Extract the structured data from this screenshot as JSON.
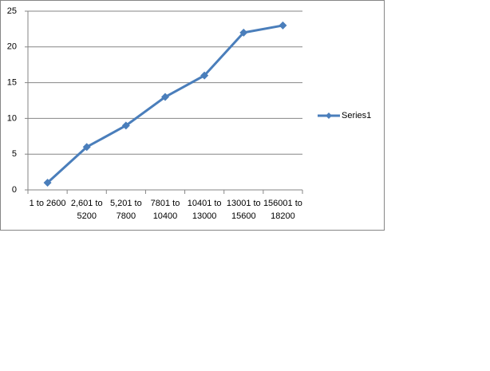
{
  "chart_data": {
    "type": "line",
    "categories": [
      "1 to 2600",
      "2,601 to 5200",
      "5,201 to 7800",
      "7801 to 10400",
      "10401 to 13000",
      "13001 to 15600",
      "156001 to 18200"
    ],
    "series": [
      {
        "name": "Series1",
        "color": "#4a7ebb",
        "values": [
          1,
          6,
          9,
          13,
          16,
          22,
          23
        ]
      }
    ],
    "ylim": [
      0,
      25
    ],
    "yticks": [
      0,
      5,
      10,
      15,
      20,
      25
    ],
    "grid": true,
    "legend": "right"
  }
}
